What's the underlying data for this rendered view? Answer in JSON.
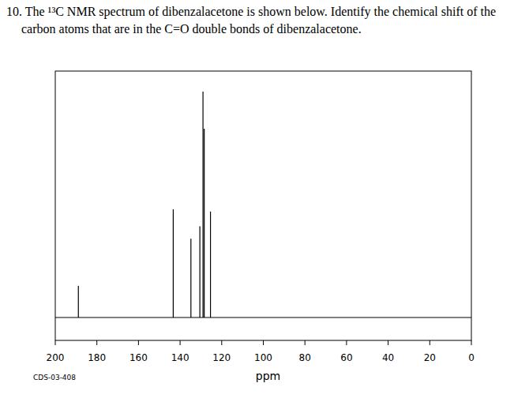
{
  "question": {
    "lines": [
      "10. The ¹³C NMR spectrum of dibenzalacetone is shown below. Identify the chemical shift of the",
      "carbon atoms that are in the C=O double bonds of dibenzalacetone."
    ]
  },
  "chart_data": {
    "type": "stick",
    "x_label": "ppm",
    "annotation": "CDS-03-408",
    "x": [
      188.9,
      143.3,
      134.8,
      130.5,
      129.0,
      128.4,
      125.4
    ],
    "values": [
      12.8,
      43.9,
      32.0,
      37.0,
      91.7,
      76.6,
      43.0
    ],
    "color": "#000000",
    "xlim": [
      200,
      0
    ],
    "ylim": [
      0,
      100
    ],
    "xticks": [
      200,
      180,
      160,
      140,
      120,
      100,
      80,
      60,
      40,
      20,
      0
    ],
    "tick_labels": "x"
  }
}
